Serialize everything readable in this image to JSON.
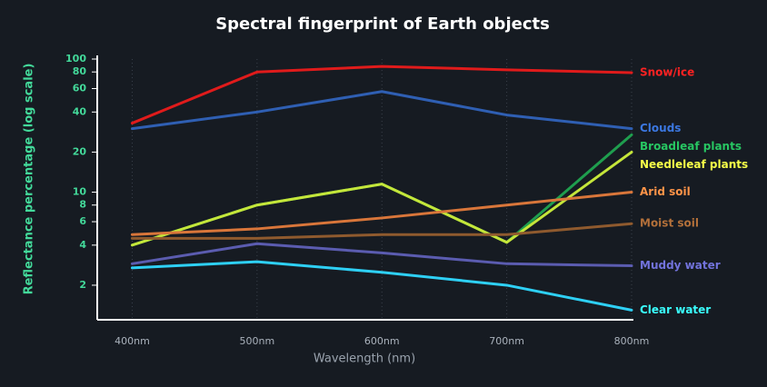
{
  "chart_data": {
    "type": "line",
    "title": "Spectral fingerprint of Earth objects",
    "xlabel": "Wavelength (nm)",
    "ylabel": "Reflectance percentage (log scale)",
    "log_y": true,
    "grid": true,
    "x": [
      400,
      500,
      600,
      700,
      800
    ],
    "xlim": [
      372,
      800
    ],
    "xticks": [
      {
        "value": 400,
        "label": "400nm"
      },
      {
        "value": 500,
        "label": "500nm"
      },
      {
        "value": 600,
        "label": "600nm"
      },
      {
        "value": 700,
        "label": "700nm"
      },
      {
        "value": 800,
        "label": "800nm"
      }
    ],
    "ylim": [
      1.1,
      100
    ],
    "yticks": [
      2,
      4,
      6,
      8,
      10,
      20,
      40,
      60,
      80,
      100
    ],
    "series": [
      {
        "name": "Snow/ice",
        "color": "#e01b1b",
        "values": [
          33,
          80,
          88,
          83,
          79
        ]
      },
      {
        "name": "Clouds",
        "color": "#2f5fb3",
        "values": [
          30,
          40,
          57,
          38,
          30
        ]
      },
      {
        "name": "Broadleaf plants",
        "color": "#1f9e4e",
        "values": [
          4,
          8,
          11.5,
          4.2,
          27
        ]
      },
      {
        "name": "Needleleaf plants",
        "color": "#c5e63a",
        "values": [
          4,
          8,
          11.5,
          4.2,
          20
        ]
      },
      {
        "name": "Arid soil",
        "color": "#d9763a",
        "values": [
          4.8,
          5.3,
          6.4,
          8,
          10
        ]
      },
      {
        "name": "Moist soil",
        "color": "#8f5a2e",
        "values": [
          4.5,
          4.5,
          4.8,
          4.8,
          5.8
        ]
      },
      {
        "name": "Muddy water",
        "color": "#5b5cb0",
        "values": [
          2.9,
          4.1,
          3.5,
          2.9,
          2.8
        ]
      },
      {
        "name": "Clear water",
        "color": "#2ed0f5",
        "values": [
          2.7,
          3.0,
          2.5,
          2.0,
          1.3
        ]
      }
    ]
  }
}
